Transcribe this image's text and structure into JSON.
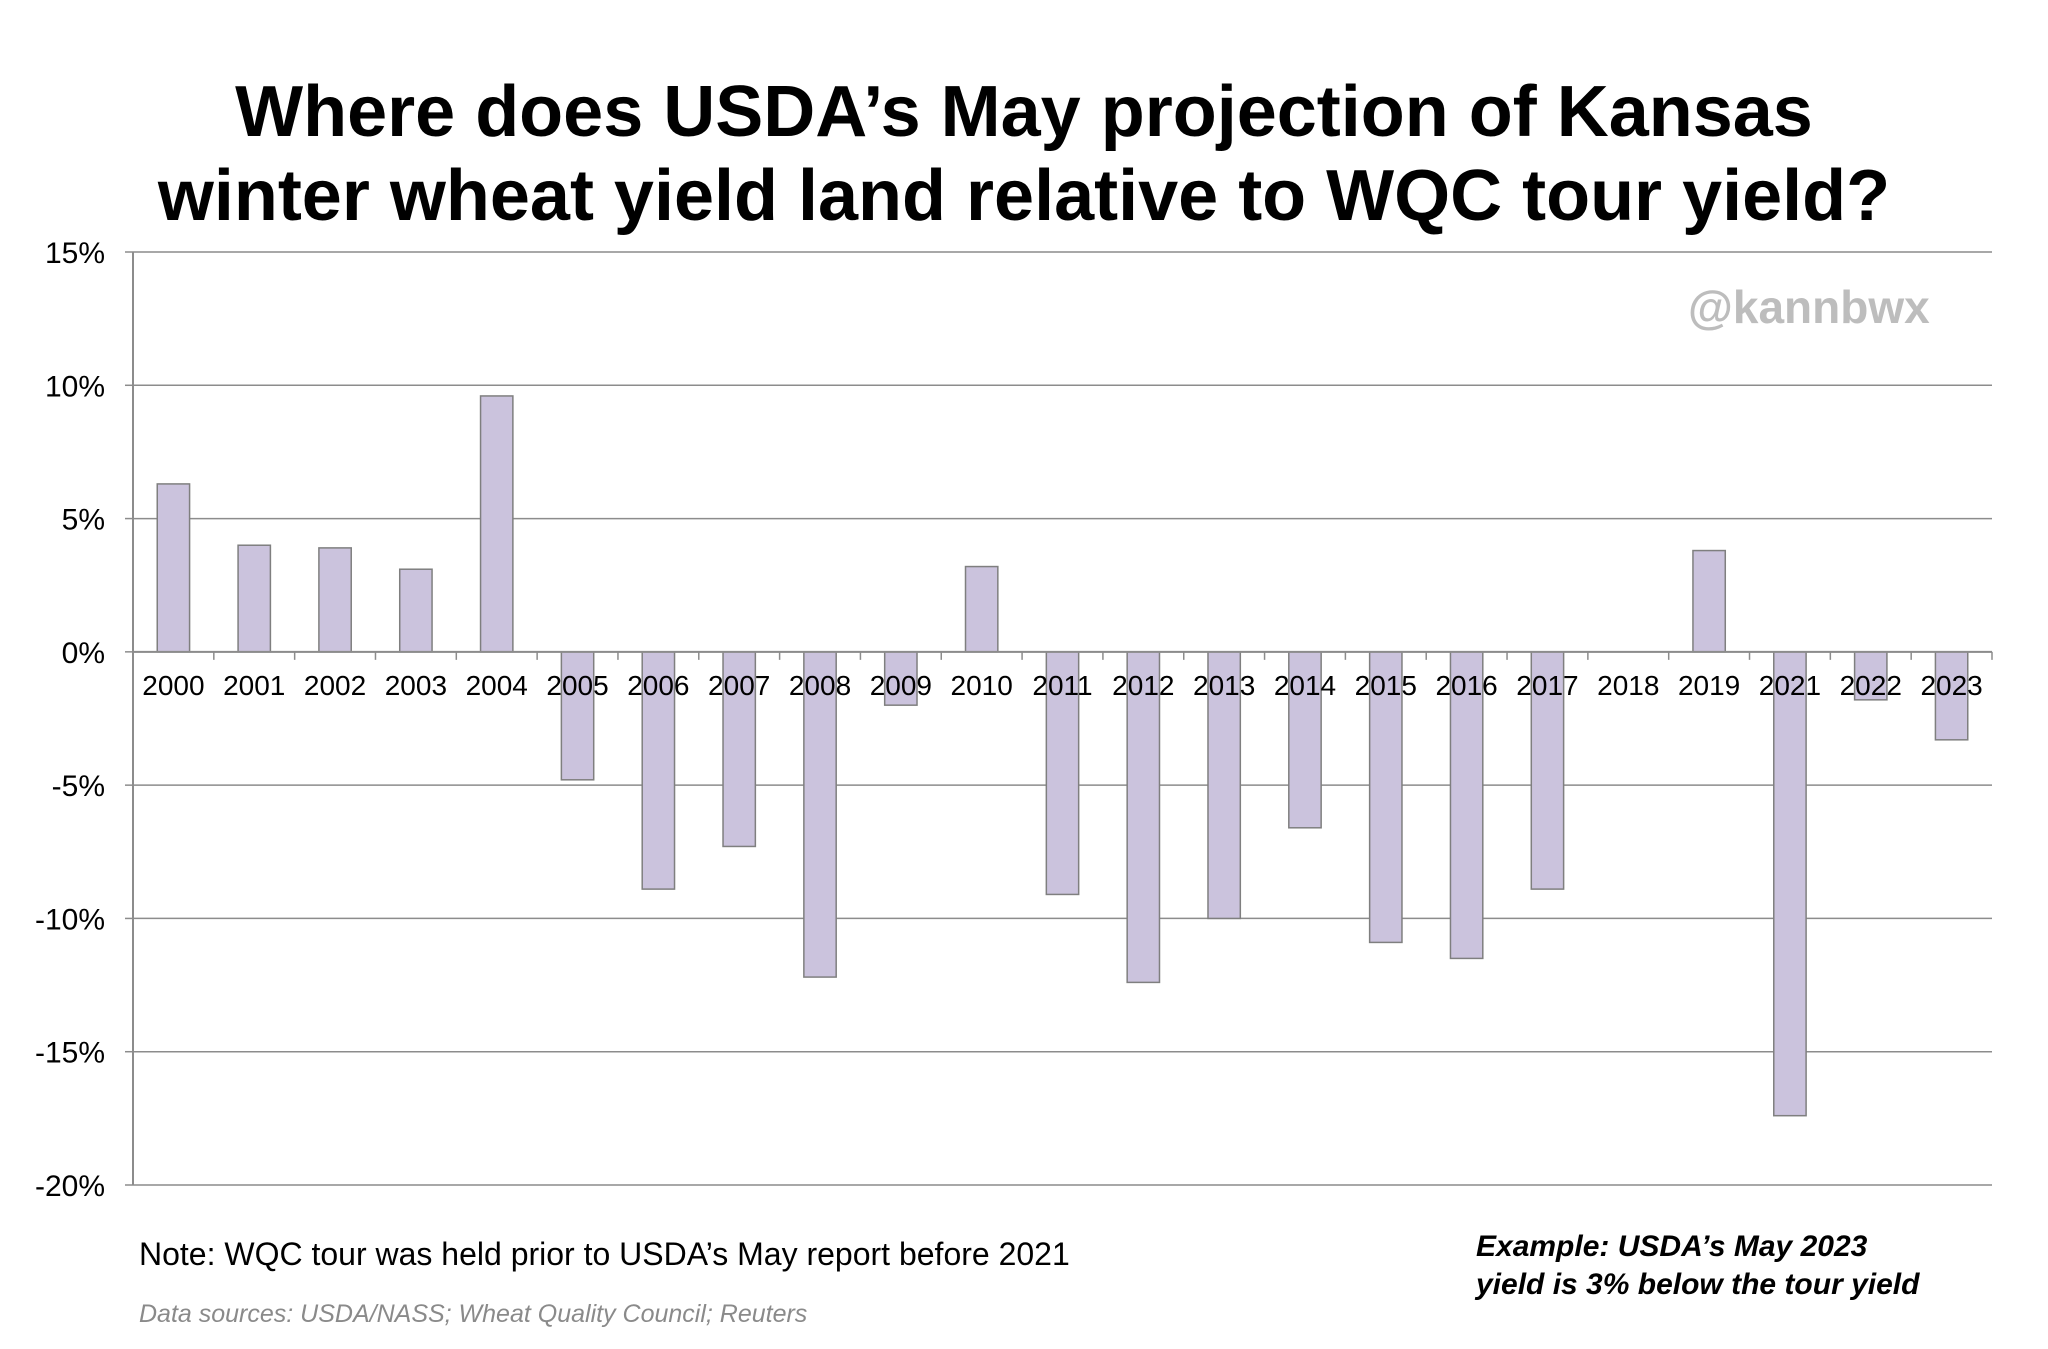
{
  "title_lines": [
    "Where does USDA’s May projection of Kansas",
    "winter wheat yield land relative to WQC tour yield?"
  ],
  "watermark": "@kannbwx",
  "note": "Note: WQC tour was held prior to USDA’s May report before 2021",
  "sources": "Data sources: USDA/NASS; Wheat Quality Council; Reuters",
  "example_lines": [
    "Example: USDA’s May 2023",
    "yield is 3% below the tour yield"
  ],
  "colors": {
    "bar_fill": "#cbc3dd",
    "bar_stroke": "#7f7f7f",
    "gridline": "#8c8c8c",
    "axis": "#8c8c8c",
    "watermark": "#bdbdbd",
    "sources": "#8a8a8a"
  },
  "chart_data": {
    "type": "bar",
    "title": "Where does USDA’s May projection of Kansas winter wheat yield land relative to WQC tour yield?",
    "xlabel": "",
    "ylabel": "",
    "ylim": [
      -20,
      15
    ],
    "yticks": [
      15,
      10,
      5,
      0,
      -5,
      -10,
      -15,
      -20
    ],
    "ytick_labels": [
      "15%",
      "10%",
      "5%",
      "0%",
      "-5%",
      "-10%",
      "-15%",
      "-20%"
    ],
    "grid": true,
    "categories": [
      "2000",
      "2001",
      "2002",
      "2003",
      "2004",
      "2005",
      "2006",
      "2007",
      "2008",
      "2009",
      "2010",
      "2011",
      "2012",
      "2013",
      "2014",
      "2015",
      "2016",
      "2017",
      "2018",
      "2019",
      "2021",
      "2022",
      "2023"
    ],
    "values": [
      6.3,
      4.0,
      3.9,
      3.1,
      9.6,
      -4.8,
      -8.9,
      -7.3,
      -12.2,
      -2.0,
      3.2,
      -9.1,
      -12.4,
      -10.0,
      -6.6,
      -10.9,
      -11.5,
      -8.9,
      0.0,
      3.8,
      -17.4,
      -1.8,
      -3.3
    ]
  }
}
